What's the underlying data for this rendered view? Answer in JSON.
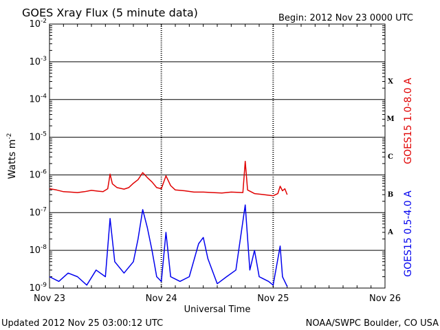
{
  "header": {
    "title": "GOES Xray Flux (5 minute data)",
    "begin": "Begin:  2012 Nov 23 0000 UTC"
  },
  "footer": {
    "updated": "Updated 2012 Nov 25 03:00:12 UTC",
    "credit": "NOAA/SWPC Boulder, CO USA"
  },
  "colors": {
    "long": "#e00000",
    "short": "#0000ee",
    "axis": "#000000"
  },
  "chart_data": {
    "type": "line",
    "title": "GOES Xray Flux (5 minute data)",
    "xlabel": "Universal Time",
    "ylabel": "Watts m⁻²",
    "yscale": "log",
    "ylim": [
      1e-09,
      0.01
    ],
    "xlim": [
      "2012-11-23T00:00",
      "2012-11-26T00:00"
    ],
    "x_ticks": [
      "Nov 23",
      "Nov 24",
      "Nov 25",
      "Nov 26"
    ],
    "y_ticks": [
      {
        "base": "10",
        "exp": "-2",
        "value": 0.01
      },
      {
        "base": "10",
        "exp": "-3",
        "value": 0.001
      },
      {
        "base": "10",
        "exp": "-4",
        "value": 0.0001
      },
      {
        "base": "10",
        "exp": "-5",
        "value": 1e-05
      },
      {
        "base": "10",
        "exp": "-6",
        "value": 1e-06
      },
      {
        "base": "10",
        "exp": "-7",
        "value": 1e-07
      },
      {
        "base": "10",
        "exp": "-8",
        "value": 1e-08
      },
      {
        "base": "10",
        "exp": "-9",
        "value": 1e-09
      }
    ],
    "flare_classes": [
      {
        "label": "X",
        "value": 0.000316
      },
      {
        "label": "M",
        "value": 3.16e-05
      },
      {
        "label": "C",
        "value": 3.16e-06
      },
      {
        "label": "B",
        "value": 3.16e-07
      },
      {
        "label": "A",
        "value": 3.16e-08
      }
    ],
    "series": [
      {
        "name": "GOES15 1.0-8.0 A",
        "color": "#e00000",
        "points": [
          [
            "2012-11-23T00:00",
            4.3e-07
          ],
          [
            "2012-11-23T01:30",
            4e-07
          ],
          [
            "2012-11-23T03:00",
            3.6e-07
          ],
          [
            "2012-11-23T04:30",
            3.5e-07
          ],
          [
            "2012-11-23T06:00",
            3.4e-07
          ],
          [
            "2012-11-23T07:30",
            3.6e-07
          ],
          [
            "2012-11-23T09:00",
            3.9e-07
          ],
          [
            "2012-11-23T10:30",
            3.7e-07
          ],
          [
            "2012-11-23T11:30",
            3.6e-07
          ],
          [
            "2012-11-23T12:30",
            4.3e-07
          ],
          [
            "2012-11-23T13:00",
            1.05e-06
          ],
          [
            "2012-11-23T13:30",
            5.8e-07
          ],
          [
            "2012-11-23T14:30",
            4.6e-07
          ],
          [
            "2012-11-23T16:00",
            4.2e-07
          ],
          [
            "2012-11-23T17:00",
            4.6e-07
          ],
          [
            "2012-11-23T18:00",
            6e-07
          ],
          [
            "2012-11-23T19:00",
            7.5e-07
          ],
          [
            "2012-11-23T20:00",
            1.15e-06
          ],
          [
            "2012-11-23T21:00",
            8.5e-07
          ],
          [
            "2012-11-23T22:00",
            6.5e-07
          ],
          [
            "2012-11-23T23:00",
            4.6e-07
          ],
          [
            "2012-11-24T00:00",
            4.3e-07
          ],
          [
            "2012-11-24T01:00",
            9.5e-07
          ],
          [
            "2012-11-24T02:00",
            5.2e-07
          ],
          [
            "2012-11-24T03:00",
            4e-07
          ],
          [
            "2012-11-24T05:00",
            3.8e-07
          ],
          [
            "2012-11-24T07:00",
            3.5e-07
          ],
          [
            "2012-11-24T09:00",
            3.5e-07
          ],
          [
            "2012-11-24T11:00",
            3.4e-07
          ],
          [
            "2012-11-24T13:00",
            3.3e-07
          ],
          [
            "2012-11-24T15:00",
            3.5e-07
          ],
          [
            "2012-11-24T17:30",
            3.4e-07
          ],
          [
            "2012-11-24T18:00",
            2.3e-06
          ],
          [
            "2012-11-24T18:30",
            4e-07
          ],
          [
            "2012-11-24T20:00",
            3.2e-07
          ],
          [
            "2012-11-24T22:00",
            3e-07
          ],
          [
            "2012-11-25T00:00",
            2.8e-07
          ],
          [
            "2012-11-25T01:00",
            3.2e-07
          ],
          [
            "2012-11-25T01:30",
            5e-07
          ],
          [
            "2012-11-25T02:00",
            3.8e-07
          ],
          [
            "2012-11-25T02:30",
            4.3e-07
          ],
          [
            "2012-11-25T03:00",
            3e-07
          ]
        ]
      },
      {
        "name": "GOES15 0.5-4.0 A",
        "color": "#0000ee",
        "points": [
          [
            "2012-11-23T00:00",
            2e-09
          ],
          [
            "2012-11-23T02:00",
            1.5e-09
          ],
          [
            "2012-11-23T04:00",
            2.5e-09
          ],
          [
            "2012-11-23T06:00",
            2e-09
          ],
          [
            "2012-11-23T08:00",
            1.2e-09
          ],
          [
            "2012-11-23T10:00",
            3e-09
          ],
          [
            "2012-11-23T12:00",
            2e-09
          ],
          [
            "2012-11-23T13:00",
            7e-08
          ],
          [
            "2012-11-23T14:00",
            5e-09
          ],
          [
            "2012-11-23T16:00",
            2.5e-09
          ],
          [
            "2012-11-23T18:00",
            5e-09
          ],
          [
            "2012-11-23T19:00",
            2e-08
          ],
          [
            "2012-11-23T20:00",
            1.2e-07
          ],
          [
            "2012-11-23T21:00",
            4e-08
          ],
          [
            "2012-11-23T22:00",
            1e-08
          ],
          [
            "2012-11-23T23:00",
            2e-09
          ],
          [
            "2012-11-24T00:00",
            1.5e-09
          ],
          [
            "2012-11-24T01:00",
            3e-08
          ],
          [
            "2012-11-24T02:00",
            2e-09
          ],
          [
            "2012-11-24T04:00",
            1.5e-09
          ],
          [
            "2012-11-24T06:00",
            2e-09
          ],
          [
            "2012-11-24T08:00",
            1.5e-08
          ],
          [
            "2012-11-24T09:00",
            2.2e-08
          ],
          [
            "2012-11-24T10:00",
            6e-09
          ],
          [
            "2012-11-24T12:00",
            1.3e-09
          ],
          [
            "2012-11-24T14:00",
            2e-09
          ],
          [
            "2012-11-24T16:00",
            3e-09
          ],
          [
            "2012-11-24T18:00",
            1.6e-07
          ],
          [
            "2012-11-24T19:00",
            3e-09
          ],
          [
            "2012-11-24T20:00",
            1e-08
          ],
          [
            "2012-11-24T21:00",
            2e-09
          ],
          [
            "2012-11-24T23:00",
            1.5e-09
          ],
          [
            "2012-11-25T00:00",
            1.2e-09
          ],
          [
            "2012-11-25T01:30",
            1.3e-08
          ],
          [
            "2012-11-25T02:00",
            2e-09
          ],
          [
            "2012-11-25T03:00",
            1.1e-09
          ]
        ]
      }
    ]
  }
}
